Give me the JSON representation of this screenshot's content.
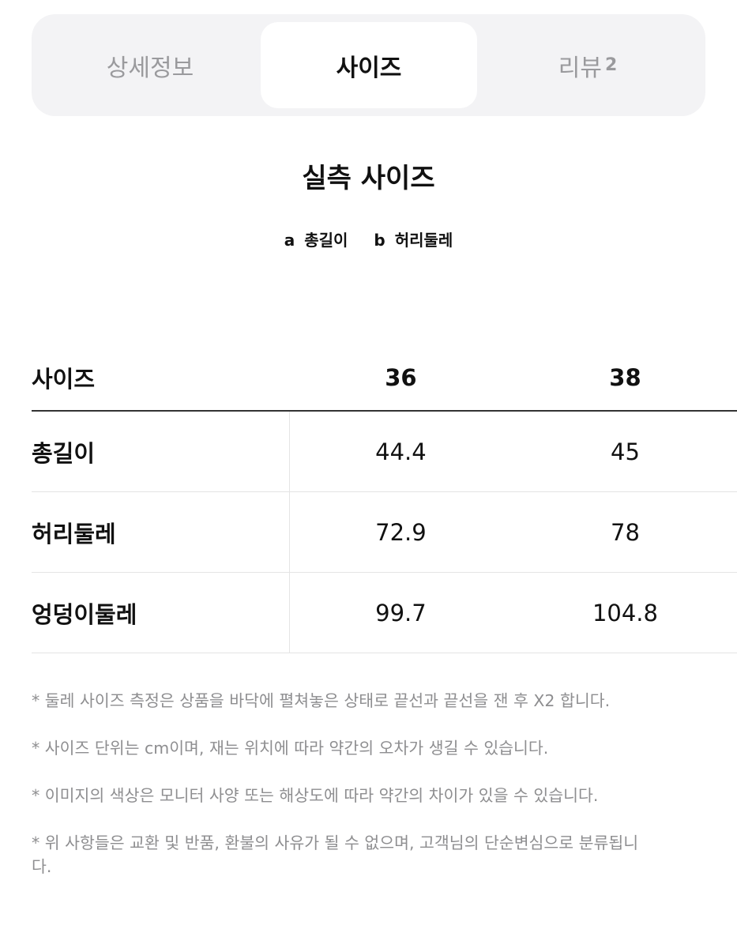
{
  "tabs": [
    {
      "label": "상세정보",
      "active": false
    },
    {
      "label": "사이즈",
      "active": true
    },
    {
      "label": "리뷰",
      "count": "2",
      "active": false
    }
  ],
  "title": "실측 사이즈",
  "legend": [
    {
      "key": "a",
      "label": "총길이"
    },
    {
      "key": "b",
      "label": "허리둘레"
    }
  ],
  "table": {
    "headers": [
      "사이즈",
      "36",
      "38"
    ],
    "rows": [
      [
        "총길이",
        "44.4",
        "45"
      ],
      [
        "허리둘레",
        "72.9",
        "78"
      ],
      [
        "엉덩이둘레",
        "99.7",
        "104.8"
      ]
    ]
  },
  "notes": [
    "* 둘레 사이즈 측정은 상품을 바닥에 펼쳐놓은 상태로 끝선과 끝선을 잰 후 X2 합니다.",
    "* 사이즈 단위는 cm이며, 재는 위치에 따라 약간의 오차가 생길 수 있습니다.",
    "* 이미지의 색상은 모니터 사양 또는 해상도에 따라 약간의 차이가 있을 수 있습니다.",
    "* 위 사항들은 교환 및 반품, 환불의 사유가 될 수 없으며, 고객님의 단순변심으로 분류됩니다."
  ],
  "colors": {
    "tabbar_bg": "#f3f3f5",
    "inactive_tab": "#9a9a9d",
    "note_text": "#8e8e90"
  }
}
